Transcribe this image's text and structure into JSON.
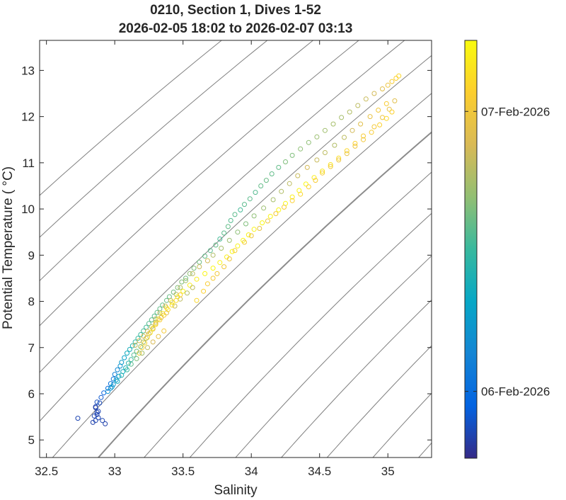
{
  "chart_data": {
    "type": "scatter",
    "title": [
      "0210, Section 1, Dives 1-52",
      "2026-02-05 18:02 to 2026-02-07 03:13"
    ],
    "xlabel": "Salinity",
    "ylabel": "Potential Temperature ( °C)",
    "xlim": [
      32.45,
      35.32
    ],
    "ylim": [
      4.62,
      13.65
    ],
    "xticks": [
      32.5,
      33,
      33.5,
      34,
      34.5,
      35
    ],
    "xtick_labels": [
      "32.5",
      "33",
      "33.5",
      "34",
      "34.5",
      "35"
    ],
    "yticks": [
      5,
      6,
      7,
      8,
      9,
      10,
      11,
      12,
      13
    ],
    "ytick_labels": [
      "5",
      "6",
      "7",
      "8",
      "9",
      "10",
      "11",
      "12",
      "13"
    ],
    "grid": false,
    "marker": "open-circle",
    "colorbar": {
      "colormap": "parula",
      "labels": [
        "07-Feb-2026",
        "06-Feb-2026"
      ],
      "label_fractions": [
        0.83,
        0.16
      ],
      "colors": [
        "#352a87",
        "#0363e1",
        "#1485d4",
        "#06a7c6",
        "#38b99e",
        "#92bf73",
        "#d9ba56",
        "#fcce2e",
        "#f9fb0e"
      ]
    },
    "density_contours": {
      "color": "#808080",
      "highlight_color": "#8c8c8c"
    },
    "series": [
      {
        "x": [
          32.73,
          32.84,
          32.86,
          32.87,
          32.88,
          32.86,
          32.89,
          32.91,
          32.93,
          32.88,
          32.87,
          32.86,
          32.85,
          32.87,
          32.9,
          32.92,
          32.95,
          32.97,
          32.99,
          33.0,
          33.02,
          33.04,
          33.05,
          33.07,
          33.09,
          33.11,
          33.13,
          33.15,
          33.17,
          33.19,
          33.21,
          33.23,
          33.25,
          33.27,
          33.29,
          33.31,
          33.33,
          33.35,
          33.38,
          33.4,
          33.43,
          33.46,
          33.49,
          33.52,
          33.55,
          33.58,
          33.62,
          33.66,
          33.7,
          33.74,
          33.77,
          33.8,
          33.83,
          33.85,
          33.88,
          33.92,
          33.95,
          33.99,
          34.03,
          34.07,
          34.11,
          34.15,
          34.2,
          34.25,
          34.3,
          34.36,
          34.42,
          34.48,
          34.54,
          34.6,
          34.66,
          34.72,
          34.78,
          34.84,
          34.9,
          34.96,
          35.0,
          35.03,
          35.06,
          35.08,
          33.18,
          33.2,
          33.22,
          33.24,
          33.26,
          33.28,
          33.3,
          33.32,
          33.35,
          33.38,
          33.42,
          33.46,
          33.5,
          33.55,
          33.6,
          33.66,
          33.72,
          33.77,
          33.82,
          33.86,
          33.9,
          33.94,
          33.98,
          34.02,
          34.08,
          34.14,
          34.2,
          34.25,
          34.3,
          34.35,
          34.4,
          34.46,
          34.52,
          34.58,
          34.64,
          34.7,
          34.76,
          34.82,
          34.9,
          34.96,
          35.01,
          35.05,
          33.6,
          33.65,
          33.68,
          33.72,
          33.75,
          33.8,
          33.84,
          33.88,
          33.95,
          34.0,
          34.06,
          34.12,
          34.18,
          34.24,
          34.3,
          34.36,
          34.42,
          34.47,
          34.52,
          34.58,
          34.64,
          34.7,
          34.76,
          34.82,
          34.88,
          34.94,
          34.99,
          35.03,
          33.3,
          33.33,
          33.37,
          33.41,
          33.45,
          33.48,
          33.52,
          33.57,
          33.62,
          33.68,
          33.72,
          33.78,
          33.84,
          33.9,
          33.96,
          34.02,
          34.09,
          34.16,
          34.22,
          34.28,
          34.34,
          34.41,
          34.48,
          34.54,
          34.61,
          34.68,
          34.74,
          34.8,
          34.87,
          34.93,
          34.99,
          33.15,
          33.18,
          33.21,
          33.24,
          33.27,
          33.3,
          33.34,
          33.38,
          33.44,
          33.48,
          33.53,
          33.57,
          32.97,
          32.99,
          33.01,
          33.03,
          33.06,
          33.08,
          33.1,
          33.12,
          33.14,
          33.16,
          33.19,
          33.21,
          33.23,
          33.25,
          33.28,
          33.3,
          33.33,
          33.36,
          33.39,
          33.42,
          33.45,
          33.48,
          32.95,
          32.98,
          33.02,
          33.05,
          33.09,
          33.12,
          33.16,
          33.2,
          33.24,
          33.28,
          33.32,
          33.36
        ],
        "y": [
          5.47,
          5.38,
          5.42,
          5.55,
          5.62,
          5.7,
          5.8,
          5.42,
          5.35,
          5.48,
          5.6,
          5.72,
          5.52,
          5.82,
          5.92,
          6.02,
          6.12,
          6.22,
          6.32,
          6.42,
          6.52,
          6.6,
          6.68,
          6.78,
          6.88,
          6.96,
          7.04,
          7.12,
          7.2,
          7.28,
          7.36,
          7.44,
          7.52,
          7.6,
          7.68,
          7.76,
          7.84,
          7.92,
          8.02,
          8.1,
          8.2,
          8.3,
          8.42,
          8.5,
          8.6,
          8.72,
          8.85,
          8.98,
          9.1,
          9.22,
          9.35,
          9.48,
          9.62,
          9.75,
          9.88,
          9.98,
          10.1,
          10.22,
          10.36,
          10.5,
          10.62,
          10.76,
          10.9,
          11.02,
          11.16,
          11.3,
          11.44,
          11.56,
          11.7,
          11.84,
          11.98,
          12.1,
          12.24,
          12.38,
          12.5,
          12.6,
          12.68,
          12.76,
          12.83,
          12.88,
          6.88,
          7.0,
          7.1,
          7.22,
          7.32,
          7.42,
          7.52,
          7.62,
          7.74,
          7.86,
          7.98,
          8.1,
          8.22,
          8.35,
          8.48,
          8.6,
          8.72,
          8.84,
          8.96,
          9.08,
          9.2,
          9.32,
          9.44,
          9.56,
          9.7,
          9.84,
          9.98,
          10.12,
          10.26,
          10.4,
          10.54,
          10.68,
          10.82,
          10.96,
          11.1,
          11.26,
          11.42,
          11.58,
          11.78,
          11.98,
          12.16,
          12.34,
          8.02,
          8.22,
          8.38,
          8.5,
          8.6,
          8.75,
          8.92,
          9.1,
          9.28,
          9.42,
          9.58,
          9.74,
          9.9,
          10.04,
          10.18,
          10.32,
          10.48,
          10.62,
          10.78,
          10.92,
          11.06,
          11.2,
          11.36,
          11.5,
          11.66,
          11.82,
          11.96,
          12.1,
          7.62,
          7.75,
          7.9,
          8.02,
          8.15,
          8.3,
          8.45,
          8.6,
          8.75,
          8.88,
          9.0,
          9.15,
          9.32,
          9.5,
          9.68,
          9.85,
          10.02,
          10.2,
          10.38,
          10.55,
          10.72,
          10.9,
          11.06,
          11.22,
          11.38,
          11.55,
          11.7,
          11.84,
          12.0,
          12.14,
          12.28,
          7.05,
          7.15,
          7.25,
          7.35,
          7.45,
          7.55,
          7.65,
          7.75,
          7.9,
          8.05,
          8.18,
          8.3,
          6.12,
          6.2,
          6.3,
          6.38,
          6.48,
          6.56,
          6.66,
          6.74,
          6.84,
          6.92,
          7.02,
          7.12,
          7.2,
          7.3,
          7.4,
          7.5,
          7.6,
          7.7,
          7.82,
          7.92,
          8.02,
          8.14,
          6.05,
          6.15,
          6.27,
          6.4,
          6.52,
          6.64,
          6.76,
          6.88,
          7.0,
          7.12,
          7.24,
          7.36
        ],
        "t": [
          0.06,
          0.05,
          0.06,
          0.05,
          0.06,
          0.05,
          0.07,
          0.06,
          0.05,
          0.06,
          0.06,
          0.05,
          0.06,
          0.08,
          0.1,
          0.13,
          0.15,
          0.18,
          0.2,
          0.23,
          0.26,
          0.3,
          0.33,
          0.36,
          0.4,
          0.42,
          0.45,
          0.48,
          0.5,
          0.5,
          0.52,
          0.52,
          0.54,
          0.55,
          0.55,
          0.56,
          0.56,
          0.56,
          0.57,
          0.57,
          0.58,
          0.6,
          0.6,
          0.58,
          0.62,
          0.6,
          0.58,
          0.56,
          0.55,
          0.56,
          0.52,
          0.55,
          0.56,
          0.54,
          0.55,
          0.52,
          0.55,
          0.55,
          0.54,
          0.56,
          0.57,
          0.56,
          0.56,
          0.6,
          0.6,
          0.62,
          0.62,
          0.64,
          0.65,
          0.66,
          0.66,
          0.68,
          0.7,
          0.72,
          0.74,
          0.78,
          0.82,
          0.86,
          0.88,
          0.9,
          0.86,
          0.88,
          0.9,
          0.92,
          0.94,
          0.96,
          0.95,
          0.94,
          0.97,
          0.96,
          0.96,
          0.98,
          0.98,
          0.97,
          0.96,
          0.98,
          0.99,
          0.98,
          0.97,
          0.99,
          0.98,
          0.99,
          0.97,
          0.98,
          0.99,
          0.98,
          0.99,
          0.98,
          0.97,
          0.98,
          0.99,
          0.96,
          0.95,
          0.94,
          0.92,
          0.9,
          0.88,
          0.86,
          0.84,
          0.82,
          0.8,
          0.78,
          0.9,
          0.88,
          0.86,
          0.85,
          0.84,
          0.83,
          0.82,
          0.85,
          0.84,
          0.82,
          0.8,
          0.82,
          0.84,
          0.86,
          0.88,
          0.9,
          0.88,
          0.86,
          0.85,
          0.84,
          0.82,
          0.8,
          0.82,
          0.84,
          0.86,
          0.88,
          0.9,
          0.88,
          0.7,
          0.72,
          0.74,
          0.72,
          0.7,
          0.68,
          0.66,
          0.7,
          0.72,
          0.74,
          0.68,
          0.66,
          0.64,
          0.62,
          0.6,
          0.62,
          0.64,
          0.66,
          0.68,
          0.7,
          0.72,
          0.74,
          0.72,
          0.7,
          0.68,
          0.7,
          0.74,
          0.78,
          0.8,
          0.84,
          0.86,
          0.72,
          0.76,
          0.78,
          0.74,
          0.7,
          0.72,
          0.74,
          0.76,
          0.72,
          0.7,
          0.68,
          0.7,
          0.28,
          0.3,
          0.32,
          0.34,
          0.38,
          0.42,
          0.46,
          0.5,
          0.54,
          0.58,
          0.62,
          0.66,
          0.7,
          0.74,
          0.78,
          0.82,
          0.86,
          0.88,
          0.9,
          0.92,
          0.9,
          0.88,
          0.3,
          0.35,
          0.4,
          0.45,
          0.5,
          0.55,
          0.6,
          0.65,
          0.7,
          0.75,
          0.8,
          0.85
        ]
      }
    ]
  }
}
